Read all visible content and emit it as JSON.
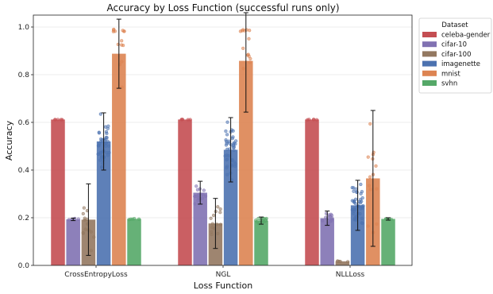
{
  "chart_data": {
    "type": "bar",
    "title": "Accuracy by Loss Function (successful runs only)",
    "xlabel": "Loss Function",
    "ylabel": "Accuracy",
    "ylim": [
      0,
      1.05
    ],
    "yticks": [
      "0.0",
      "0.2",
      "0.4",
      "0.6",
      "0.8",
      "1.0"
    ],
    "grid": true,
    "categories": [
      "CrossEntropyLoss",
      "NGL",
      "NLLLoss"
    ],
    "legend": {
      "title": "Dataset",
      "placement": "right-outside"
    },
    "series": [
      {
        "name": "celeba-gender",
        "color": "#c44e52",
        "values": [
          0.612,
          0.612,
          0.612
        ],
        "err": [
          0.002,
          0.002,
          0.002
        ]
      },
      {
        "name": "cifar-10",
        "color": "#8172b2",
        "values": [
          0.193,
          0.305,
          0.198
        ],
        "err": [
          0.005,
          0.048,
          0.03
        ]
      },
      {
        "name": "cifar-100",
        "color": "#937860",
        "values": [
          0.192,
          0.176,
          0.017
        ],
        "err": [
          0.15,
          0.105,
          0.003
        ]
      },
      {
        "name": "imagenette",
        "color": "#4c72b0",
        "values": [
          0.52,
          0.485,
          0.252
        ],
        "err": [
          0.12,
          0.135,
          0.105
        ]
      },
      {
        "name": "mnist",
        "color": "#dd8452",
        "values": [
          0.888,
          0.858,
          0.365
        ],
        "err": [
          0.145,
          0.215,
          0.285
        ]
      },
      {
        "name": "svhn",
        "color": "#55a868",
        "values": [
          0.195,
          0.188,
          0.195
        ],
        "err": [
          0.003,
          0.015,
          0.005
        ]
      }
    ]
  }
}
